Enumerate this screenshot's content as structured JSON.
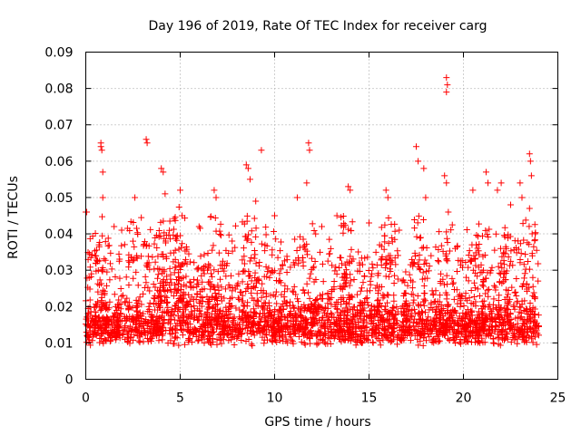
{
  "chart_data": {
    "type": "scatter",
    "title": "Day 196 of 2019, Rate Of TEC Index for receiver carg",
    "xlabel": "GPS time / hours",
    "ylabel": "ROTI / TECUs",
    "xlim": [
      0,
      25
    ],
    "ylim": [
      0,
      0.09
    ],
    "xticks": [
      "0",
      "5",
      "10",
      "15",
      "20",
      "25"
    ],
    "yticks": [
      "0",
      "0.01",
      "0.02",
      "0.03",
      "0.04",
      "0.05",
      "0.06",
      "0.07",
      "0.08",
      "0.09"
    ],
    "grid": true,
    "marker": "+",
    "color": "#ff0000",
    "series": [
      {
        "name": "ROTI",
        "points": [
          [
            0.0,
            0.046
          ],
          [
            0.05,
            0.046
          ],
          [
            0.3,
            0.029
          ],
          [
            0.5,
            0.034
          ],
          [
            0.7,
            0.037
          ],
          [
            0.8,
            0.064
          ],
          [
            0.8,
            0.065
          ],
          [
            0.85,
            0.063
          ],
          [
            0.9,
            0.057
          ],
          [
            0.9,
            0.05
          ],
          [
            1.5,
            0.042
          ],
          [
            1.9,
            0.041
          ],
          [
            2.5,
            0.038
          ],
          [
            2.6,
            0.05
          ],
          [
            3.2,
            0.066
          ],
          [
            3.25,
            0.065
          ],
          [
            4.0,
            0.058
          ],
          [
            4.1,
            0.057
          ],
          [
            4.2,
            0.051
          ],
          [
            5.0,
            0.052
          ],
          [
            5.1,
            0.045
          ],
          [
            6.0,
            0.042
          ],
          [
            6.8,
            0.052
          ],
          [
            6.9,
            0.05
          ],
          [
            8.5,
            0.059
          ],
          [
            8.6,
            0.058
          ],
          [
            8.7,
            0.055
          ],
          [
            9.0,
            0.049
          ],
          [
            9.3,
            0.063
          ],
          [
            10.0,
            0.045
          ],
          [
            11.2,
            0.05
          ],
          [
            11.7,
            0.054
          ],
          [
            11.8,
            0.065
          ],
          [
            11.85,
            0.063
          ],
          [
            12.5,
            0.042
          ],
          [
            13.3,
            0.045
          ],
          [
            13.9,
            0.053
          ],
          [
            14.0,
            0.052
          ],
          [
            15.0,
            0.043
          ],
          [
            15.9,
            0.052
          ],
          [
            16.0,
            0.05
          ],
          [
            16.6,
            0.041
          ],
          [
            17.5,
            0.064
          ],
          [
            17.6,
            0.06
          ],
          [
            17.9,
            0.058
          ],
          [
            18.0,
            0.05
          ],
          [
            19.1,
            0.083
          ],
          [
            19.15,
            0.081
          ],
          [
            19.1,
            0.079
          ],
          [
            19.0,
            0.056
          ],
          [
            19.1,
            0.054
          ],
          [
            19.2,
            0.046
          ],
          [
            20.5,
            0.052
          ],
          [
            21.2,
            0.057
          ],
          [
            21.3,
            0.054
          ],
          [
            21.8,
            0.052
          ],
          [
            22.0,
            0.054
          ],
          [
            22.5,
            0.048
          ],
          [
            23.0,
            0.054
          ],
          [
            23.1,
            0.05
          ],
          [
            23.5,
            0.062
          ],
          [
            23.55,
            0.06
          ],
          [
            23.6,
            0.056
          ],
          [
            23.5,
            0.047
          ],
          [
            23.8,
            0.04
          ]
        ]
      }
    ]
  }
}
